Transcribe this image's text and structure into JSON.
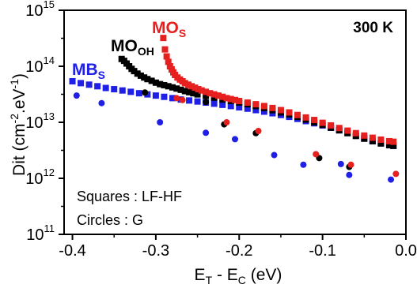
{
  "chart_data": {
    "type": "scatter",
    "xlabel": {
      "main": "E",
      "sub1": "T",
      "mid": " - E",
      "sub2": "C",
      "tail": " (eV)"
    },
    "ylabel": {
      "main": "Dit (cm",
      "sup1": "-2",
      "mid": ".eV",
      "sup2": "-1",
      "tail": ")"
    },
    "xlim": [
      -0.41,
      0.0
    ],
    "ylim": [
      100000000000.0,
      1000000000000000.0
    ],
    "yscale": "log",
    "grid": false,
    "x_ticks": [
      {
        "value": -0.4,
        "label": "-0.4"
      },
      {
        "value": -0.3,
        "label": "-0.3"
      },
      {
        "value": -0.2,
        "label": "-0.2"
      },
      {
        "value": -0.1,
        "label": "-0.1"
      },
      {
        "value": 0.0,
        "label": "0.0"
      }
    ],
    "y_ticks": [
      {
        "value": 100000000000.0,
        "base": "10",
        "exp": "11"
      },
      {
        "value": 1000000000000.0,
        "base": "10",
        "exp": "12"
      },
      {
        "value": 10000000000000.0,
        "base": "10",
        "exp": "13"
      },
      {
        "value": 100000000000000.0,
        "base": "10",
        "exp": "14"
      },
      {
        "value": 1000000000000000.0,
        "base": "10",
        "exp": "15"
      }
    ],
    "annotations": {
      "temperature": "300 K",
      "squares_note": "Squares : LF-HF",
      "circles_note": "Circles : G"
    },
    "series": [
      {
        "label_main": "MB",
        "label_sub": "S",
        "color": "#1f1fe6",
        "squares": {
          "x": [
            -0.4,
            -0.39,
            -0.38,
            -0.37,
            -0.36,
            -0.35,
            -0.34,
            -0.33,
            -0.32,
            -0.31,
            -0.3,
            -0.29,
            -0.28,
            -0.27,
            -0.26,
            -0.25,
            -0.24,
            -0.23,
            -0.22,
            -0.21,
            -0.2,
            -0.19,
            -0.18,
            -0.17,
            -0.16,
            -0.15,
            -0.14,
            -0.13,
            -0.12,
            -0.11,
            -0.1,
            -0.09,
            -0.08,
            -0.07,
            -0.06,
            -0.05,
            -0.04,
            -0.03,
            -0.02,
            -0.015
          ],
          "y": [
            54000000000000.0,
            50000000000000.0,
            47000000000000.0,
            44000000000000.0,
            41000000000000.0,
            39000000000000.0,
            37000000000000.0,
            35000000000000.0,
            33000000000000.0,
            31500000000000.0,
            30000000000000.0,
            28500000000000.0,
            27000000000000.0,
            25500000000000.0,
            24500000000000.0,
            23500000000000.0,
            22500000000000.0,
            21500000000000.0,
            20500000000000.0,
            19500000000000.0,
            18500000000000.0,
            17500000000000.0,
            16500000000000.0,
            15500000000000.0,
            14500000000000.0,
            13500000000000.0,
            12500000000000.0,
            11500000000000.0,
            10500000000000.0,
            9600000000000.0,
            8800000000000.0,
            8000000000000.0,
            7200000000000.0,
            6500000000000.0,
            5800000000000.0,
            5200000000000.0,
            4600000000000.0,
            4200000000000.0,
            3900000000000.0,
            3800000000000.0
          ]
        },
        "circles": {
          "x": [
            -0.395,
            -0.365,
            -0.295,
            -0.24,
            -0.205,
            -0.158,
            -0.123,
            -0.078,
            -0.068,
            -0.018
          ],
          "y": [
            30000000000000.0,
            22000000000000.0,
            10000000000000.0,
            6500000000000.0,
            5000000000000.0,
            2600000000000.0,
            1750000000000.0,
            1800000000000.0,
            1150000000000.0,
            950000000000.0
          ]
        }
      },
      {
        "label_main": "MO",
        "label_sub": "OH",
        "color": "#000000",
        "squares": {
          "x": [
            -0.341,
            -0.338,
            -0.335,
            -0.332,
            -0.329,
            -0.326,
            -0.322,
            -0.318,
            -0.314,
            -0.31,
            -0.305,
            -0.3,
            -0.295,
            -0.29,
            -0.285,
            -0.28,
            -0.275,
            -0.27,
            -0.265,
            -0.26,
            -0.255,
            -0.25,
            -0.24,
            -0.23,
            -0.22,
            -0.21,
            -0.2,
            -0.19,
            -0.18,
            -0.17,
            -0.16,
            -0.15,
            -0.14,
            -0.13,
            -0.12,
            -0.11,
            -0.1,
            -0.09,
            -0.08,
            -0.07,
            -0.06,
            -0.05,
            -0.04,
            -0.03,
            -0.02,
            -0.015
          ],
          "y": [
            135000000000000.0,
            125000000000000.0,
            112000000000000.0,
            100000000000000.0,
            90000000000000.0,
            82000000000000.0,
            74000000000000.0,
            68000000000000.0,
            63000000000000.0,
            59000000000000.0,
            55000000000000.0,
            51000000000000.0,
            48000000000000.0,
            46000000000000.0,
            44000000000000.0,
            42000000000000.0,
            40000000000000.0,
            38000000000000.0,
            36000000000000.0,
            34500000000000.0,
            33000000000000.0,
            31500000000000.0,
            29500000000000.0,
            27500000000000.0,
            25500000000000.0,
            24000000000000.0,
            22500000000000.0,
            21000000000000.0,
            19500000000000.0,
            18000000000000.0,
            16500000000000.0,
            15000000000000.0,
            13800000000000.0,
            12500000000000.0,
            11200000000000.0,
            10000000000000.0,
            9000000000000.0,
            8000000000000.0,
            7200000000000.0,
            6400000000000.0,
            5700000000000.0,
            5100000000000.0,
            4600000000000.0,
            4200000000000.0,
            3900000000000.0,
            3800000000000.0
          ]
        },
        "circles": {
          "x": [
            -0.313,
            -0.24,
            -0.218,
            -0.18,
            -0.104,
            -0.068
          ],
          "y": [
            34000000000000.0,
            23000000000000.0,
            9200000000000.0,
            6400000000000.0,
            2300000000000.0,
            1600000000000.0
          ]
        }
      },
      {
        "label_main": "MO",
        "label_sub": "S",
        "color": "#e61f1f",
        "squares": {
          "x": [
            -0.291,
            -0.289,
            -0.287,
            -0.285,
            -0.283,
            -0.281,
            -0.279,
            -0.277,
            -0.274,
            -0.271,
            -0.268,
            -0.265,
            -0.261,
            -0.257,
            -0.253,
            -0.249,
            -0.245,
            -0.24,
            -0.235,
            -0.23,
            -0.225,
            -0.22,
            -0.215,
            -0.21,
            -0.205,
            -0.2,
            -0.19,
            -0.18,
            -0.17,
            -0.16,
            -0.15,
            -0.14,
            -0.13,
            -0.12,
            -0.11,
            -0.1,
            -0.09,
            -0.08,
            -0.07,
            -0.06,
            -0.05,
            -0.04,
            -0.03,
            -0.02,
            -0.015
          ],
          "y": [
            320000000000000.0,
            200000000000000.0,
            150000000000000.0,
            120000000000000.0,
            100000000000000.0,
            88000000000000.0,
            78000000000000.0,
            70000000000000.0,
            63000000000000.0,
            58000000000000.0,
            54000000000000.0,
            50000000000000.0,
            47000000000000.0,
            44000000000000.0,
            41500000000000.0,
            39000000000000.0,
            37000000000000.0,
            35000000000000.0,
            33000000000000.0,
            31500000000000.0,
            30000000000000.0,
            28500000000000.0,
            27000000000000.0,
            26000000000000.0,
            25000000000000.0,
            24000000000000.0,
            22500000000000.0,
            21000000000000.0,
            19500000000000.0,
            18000000000000.0,
            16500000000000.0,
            15000000000000.0,
            13500000000000.0,
            12200000000000.0,
            11000000000000.0,
            9800000000000.0,
            8800000000000.0,
            7900000000000.0,
            7100000000000.0,
            6400000000000.0,
            5800000000000.0,
            5300000000000.0,
            4900000000000.0,
            4600000000000.0,
            4500000000000.0
          ]
        },
        "circles": {
          "x": [
            -0.275,
            -0.268,
            -0.215,
            -0.177,
            -0.108,
            -0.066,
            -0.012
          ],
          "y": [
            27000000000000.0,
            25000000000000.0,
            10000000000000.0,
            7000000000000.0,
            2700000000000.0,
            1750000000000.0,
            1200000000000.0
          ]
        }
      }
    ]
  }
}
